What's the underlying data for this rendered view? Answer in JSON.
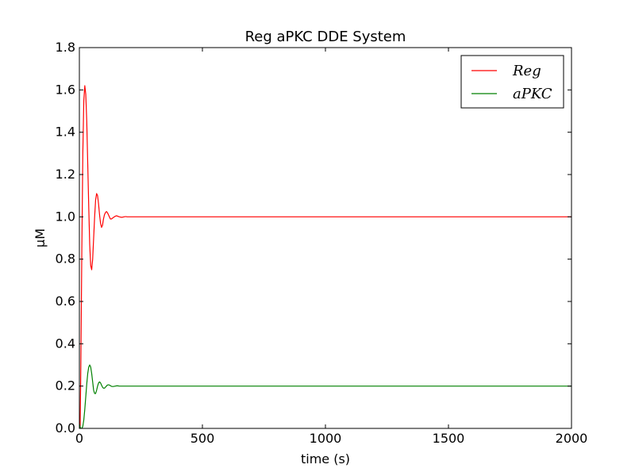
{
  "chart_data": {
    "type": "line",
    "title": "Reg aPKC DDE System",
    "xlabel": "time (s)",
    "ylabel": "μM",
    "xlim": [
      0,
      2000
    ],
    "ylim": [
      0,
      1.8
    ],
    "xticks": [
      0,
      500,
      1000,
      1500,
      2000
    ],
    "xtick_labels": [
      "0",
      "500",
      "1000",
      "1500",
      "2000"
    ],
    "yticks": [
      0,
      0.2,
      0.4,
      0.6,
      0.8,
      1.0,
      1.2,
      1.4,
      1.6,
      1.8
    ],
    "ytick_labels": [
      "0.0",
      "0.2",
      "0.4",
      "0.6",
      "0.8",
      "1.0",
      "1.2",
      "1.4",
      "1.6",
      "1.8"
    ],
    "grid": false,
    "legend_position": "top-right",
    "series": [
      {
        "name": "Reg",
        "color": "#ff0000",
        "x": [
          0,
          3,
          6,
          10,
          14,
          18,
          22,
          26,
          30,
          34,
          38,
          42,
          46,
          50,
          54,
          58,
          62,
          66,
          70,
          74,
          78,
          82,
          86,
          90,
          94,
          98,
          102,
          106,
          110,
          114,
          118,
          122,
          126,
          130,
          134,
          138,
          142,
          146,
          150,
          154,
          158,
          162,
          166,
          170,
          174,
          178,
          182,
          186,
          190,
          194,
          198,
          202,
          206,
          210,
          214,
          218,
          222,
          230,
          260,
          300,
          400,
          2000
        ],
        "y": [
          0.05,
          0.0,
          0.3,
          0.85,
          1.3,
          1.55,
          1.62,
          1.58,
          1.45,
          1.25,
          1.05,
          0.87,
          0.77,
          0.75,
          0.8,
          0.9,
          1.0,
          1.08,
          1.11,
          1.1,
          1.06,
          1.01,
          0.97,
          0.95,
          0.96,
          0.99,
          1.01,
          1.02,
          1.025,
          1.02,
          1.01,
          1.0,
          0.99,
          0.99,
          0.993,
          0.997,
          1.0,
          1.003,
          1.005,
          1.004,
          1.002,
          1.0,
          0.999,
          0.998,
          0.998,
          0.999,
          1.0,
          1.001,
          1.001,
          1.0,
          1.0,
          1.0,
          1.0,
          1.0,
          1.0,
          1.0,
          1.0,
          1.0,
          1.0,
          1.0,
          1.0,
          1.0
        ]
      },
      {
        "name": "aPKC",
        "color": "#008000",
        "x": [
          0,
          5,
          10,
          14,
          18,
          22,
          26,
          30,
          34,
          38,
          42,
          46,
          50,
          54,
          58,
          62,
          66,
          70,
          74,
          78,
          82,
          86,
          90,
          94,
          98,
          102,
          106,
          110,
          114,
          118,
          122,
          126,
          130,
          134,
          138,
          142,
          146,
          150,
          154,
          158,
          162,
          166,
          170,
          174,
          178,
          182,
          186,
          190,
          194,
          198,
          202,
          206,
          210,
          214,
          218,
          222,
          230,
          260,
          300,
          400,
          2000
        ],
        "y": [
          0.02,
          0.0,
          0.0,
          0.01,
          0.04,
          0.09,
          0.15,
          0.21,
          0.26,
          0.29,
          0.3,
          0.29,
          0.26,
          0.22,
          0.18,
          0.165,
          0.165,
          0.18,
          0.2,
          0.215,
          0.22,
          0.215,
          0.205,
          0.195,
          0.19,
          0.19,
          0.195,
          0.2,
          0.205,
          0.206,
          0.205,
          0.202,
          0.199,
          0.198,
          0.198,
          0.199,
          0.2,
          0.201,
          0.201,
          0.201,
          0.2,
          0.2,
          0.2,
          0.2,
          0.2,
          0.2,
          0.2,
          0.2,
          0.2,
          0.2,
          0.2,
          0.2,
          0.2,
          0.2,
          0.2,
          0.2,
          0.2,
          0.2,
          0.2,
          0.2,
          0.2
        ]
      }
    ]
  }
}
